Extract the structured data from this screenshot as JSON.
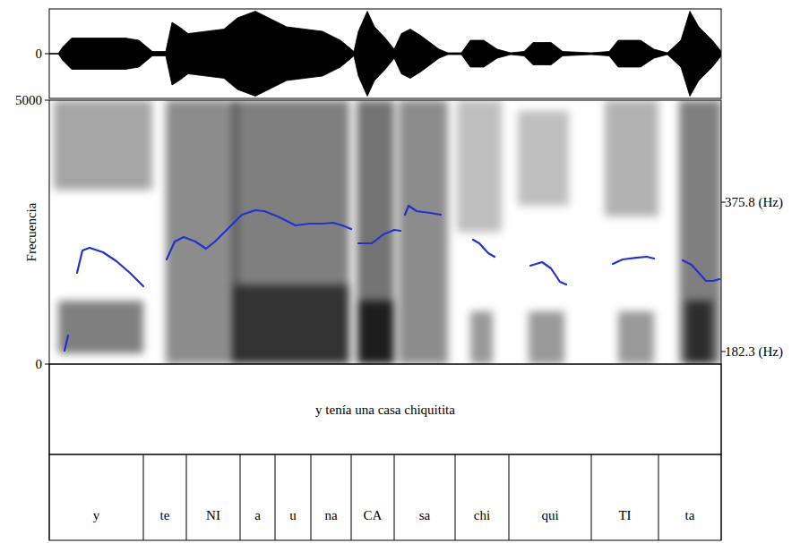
{
  "chart_data": {
    "type": "line",
    "xlim": [
      0,
      1.5
    ],
    "waveform": {
      "ylim": [
        -1,
        1
      ],
      "yticks": [
        0
      ],
      "x": [
        0,
        0.02,
        0.03,
        0.05,
        0.17,
        0.2,
        0.23,
        0.26,
        0.274,
        0.29,
        0.31,
        0.35,
        0.39,
        0.42,
        0.46,
        0.49,
        0.53,
        0.57,
        0.61,
        0.65,
        0.68,
        0.69,
        0.71,
        0.726,
        0.75,
        0.77,
        0.786,
        0.806,
        0.83,
        0.87,
        0.89,
        0.92,
        0.94,
        0.97,
        1.0,
        1.03,
        1.06,
        1.08,
        1.12,
        1.146,
        1.21,
        1.25,
        1.27,
        1.32,
        1.35,
        1.38,
        1.41,
        1.43,
        1.45,
        1.48,
        1.5
      ],
      "values": [
        0,
        0,
        0.15,
        0.35,
        0.35,
        0.3,
        0.05,
        0.05,
        0.7,
        0.6,
        0.45,
        0.5,
        0.55,
        0.8,
        0.95,
        0.8,
        0.6,
        0.55,
        0.5,
        0.3,
        0.05,
        0.5,
        0.95,
        0.6,
        0.35,
        0.1,
        0.45,
        0.55,
        0.4,
        0.1,
        0.02,
        0.02,
        0.3,
        0.3,
        0.1,
        0.02,
        0.05,
        0.25,
        0.25,
        0.05,
        0.02,
        0.05,
        0.3,
        0.3,
        0.1,
        0.02,
        0.3,
        0.95,
        0.6,
        0.3,
        0.05
      ]
    },
    "spectrogram": {
      "y_label": "Frecuencia",
      "ylim": [
        0,
        5000
      ],
      "yticks": [
        0,
        5000
      ],
      "bands": [
        {
          "t": [
            0.01,
            0.23
          ],
          "f": [
            3300,
            5000
          ],
          "level": 0.35
        },
        {
          "t": [
            0.02,
            0.21
          ],
          "f": [
            200,
            1200
          ],
          "level": 0.5
        },
        {
          "t": [
            0.26,
            0.42
          ],
          "f": [
            0,
            5000
          ],
          "level": 0.45
        },
        {
          "t": [
            0.41,
            0.67
          ],
          "f": [
            0,
            5000
          ],
          "level": 0.5
        },
        {
          "t": [
            0.41,
            0.67
          ],
          "f": [
            0,
            1500
          ],
          "level": 0.6
        },
        {
          "t": [
            0.686,
            0.77
          ],
          "f": [
            0,
            5000
          ],
          "level": 0.55
        },
        {
          "t": [
            0.69,
            0.77
          ],
          "f": [
            0,
            1200
          ],
          "level": 0.75
        },
        {
          "t": [
            0.78,
            0.89
          ],
          "f": [
            0,
            5000
          ],
          "level": 0.45
        },
        {
          "t": [
            0.91,
            1.01
          ],
          "f": [
            2500,
            5000
          ],
          "level": 0.25
        },
        {
          "t": [
            0.94,
            0.99
          ],
          "f": [
            0,
            1000
          ],
          "level": 0.4
        },
        {
          "t": [
            1.046,
            1.16
          ],
          "f": [
            3000,
            4800
          ],
          "level": 0.25
        },
        {
          "t": [
            1.07,
            1.15
          ],
          "f": [
            0,
            1000
          ],
          "level": 0.4
        },
        {
          "t": [
            1.24,
            1.36
          ],
          "f": [
            2800,
            5000
          ],
          "level": 0.3
        },
        {
          "t": [
            1.27,
            1.35
          ],
          "f": [
            0,
            1000
          ],
          "level": 0.4
        },
        {
          "t": [
            1.406,
            1.5
          ],
          "f": [
            0,
            5000
          ],
          "level": 0.5
        },
        {
          "t": [
            1.42,
            1.48
          ],
          "f": [
            0,
            1200
          ],
          "level": 0.65
        }
      ]
    },
    "ylim": [
      166,
      508
    ],
    "yticks": [
      {
        "value": 182.3,
        "label": "182.3 (Hz)"
      },
      {
        "value": 375.8,
        "label": "375.8 (Hz)"
      }
    ],
    "series": [
      {
        "color": "#2233cc",
        "x": [
          0.034,
          0.042,
          null,
          0.062,
          0.074,
          0.09,
          0.12,
          0.15,
          0.18,
          0.21,
          null,
          0.262,
          0.28,
          0.3,
          0.326,
          0.35,
          0.37,
          0.4,
          0.43,
          0.46,
          0.48,
          0.51,
          0.55,
          0.58,
          0.61,
          0.634,
          0.654,
          0.674,
          null,
          0.69,
          0.72,
          0.746,
          0.77,
          0.784,
          null,
          0.794,
          0.802,
          0.82,
          0.85,
          0.874,
          null,
          0.946,
          0.96,
          0.98,
          0.994,
          null,
          1.074,
          1.1,
          1.12,
          1.14,
          1.154,
          null,
          1.258,
          1.28,
          1.31,
          1.334,
          1.35,
          null,
          1.414,
          1.434,
          1.45,
          1.466,
          1.482,
          1.496
        ],
        "values": [
          183.4,
          203.1,
          null,
          284.2,
          313.2,
          316.7,
          310.9,
          299.3,
          284.2,
          266.9,
          null,
          301.6,
          324.8,
          330.6,
          324.8,
          315.5,
          324.8,
          342.2,
          359.6,
          365.4,
          364.2,
          357.3,
          345.7,
          348,
          348,
          349.2,
          345.7,
          341.1,
          null,
          322.5,
          322.5,
          334.1,
          339.9,
          338.7,
          null,
          359.6,
          371.2,
          364.2,
          361.9,
          359.6,
          null,
          327.1,
          322.5,
          309.8,
          305.1,
          null,
          293.5,
          298.2,
          290.1,
          272.7,
          269.2,
          null,
          295.8,
          301.6,
          303.9,
          305.1,
          302.8,
          null,
          300.5,
          294.7,
          284.2,
          273.8,
          273.8,
          276.1
        ]
      }
    ],
    "tiers": [
      {
        "intervals": [
          {
            "text": "y tenía una casa chiquitita",
            "start": 0,
            "end": 1.5
          }
        ]
      },
      {
        "boundaries": [
          0,
          0.21,
          0.306,
          0.426,
          0.504,
          0.584,
          0.674,
          0.77,
          0.906,
          1.026,
          1.21,
          1.36,
          1.5
        ],
        "labels": [
          "y",
          "te",
          "NI",
          "a",
          "u",
          "na",
          "CA",
          "sa",
          "chi",
          "qui",
          "TI",
          "ta"
        ]
      }
    ]
  }
}
